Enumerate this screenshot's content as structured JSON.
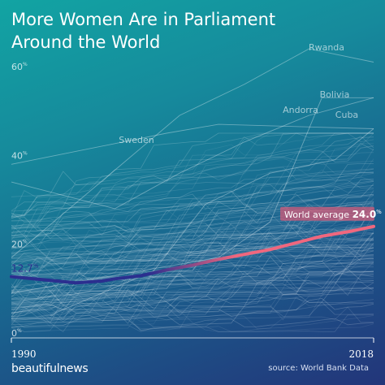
{
  "title_line1": "More Women Are in Parliament",
  "title_line2": "Around the World",
  "brand": "beautifulnews",
  "source": "source: World Bank Data",
  "chart_data": {
    "type": "line",
    "xlim": [
      1990,
      2018
    ],
    "ylim": [
      0,
      60
    ],
    "y_ticks": [
      {
        "value": 60,
        "label": "60",
        "unit": "%"
      },
      {
        "value": 40,
        "label": "40",
        "unit": "%"
      },
      {
        "value": 20,
        "label": "20",
        "unit": "%"
      },
      {
        "value": 0,
        "label": "0",
        "unit": "%"
      }
    ],
    "x_tick_labels": {
      "start": "1990",
      "end": "2018"
    },
    "grid": false,
    "average": {
      "label": "World average",
      "start_value": "12.7",
      "end_value": "24.0",
      "unit": "%",
      "color_early": "#2b2f8f",
      "color_late": "#f0677e",
      "points": [
        [
          1990,
          12.7
        ],
        [
          1995,
          11.3
        ],
        [
          1997,
          11.7
        ],
        [
          1998,
          12.2
        ],
        [
          2000,
          12.9
        ],
        [
          2002,
          14.2
        ],
        [
          2004,
          15.3
        ],
        [
          2006,
          16.6
        ],
        [
          2008,
          17.7
        ],
        [
          2010,
          18.8
        ],
        [
          2012,
          20.3
        ],
        [
          2014,
          21.8
        ],
        [
          2016,
          22.8
        ],
        [
          2018,
          24.0
        ]
      ]
    },
    "labeled_countries": [
      {
        "name": "Sweden",
        "points": [
          [
            1990,
            38
          ],
          [
            2002,
            45
          ],
          [
            2006,
            47
          ],
          [
            2018,
            46
          ]
        ]
      },
      {
        "name": "Rwanda",
        "points": [
          [
            1990,
            17
          ],
          [
            2003,
            49
          ],
          [
            2008,
            56
          ],
          [
            2013,
            64
          ],
          [
            2018,
            61
          ]
        ]
      },
      {
        "name": "Bolivia",
        "points": [
          [
            1990,
            9
          ],
          [
            2006,
            17
          ],
          [
            2010,
            25
          ],
          [
            2014,
            53
          ],
          [
            2018,
            53
          ]
        ]
      },
      {
        "name": "Andorra",
        "points": [
          [
            1993,
            4
          ],
          [
            2001,
            14
          ],
          [
            2005,
            29
          ],
          [
            2010,
            36
          ],
          [
            2015,
            39
          ],
          [
            2018,
            46
          ]
        ]
      },
      {
        "name": "Cuba",
        "points": [
          [
            1990,
            34
          ],
          [
            1998,
            28
          ],
          [
            2003,
            36
          ],
          [
            2008,
            43
          ],
          [
            2013,
            49
          ],
          [
            2018,
            53
          ]
        ]
      }
    ],
    "background_series_count": 150,
    "background_line_color": "#ffffff"
  }
}
